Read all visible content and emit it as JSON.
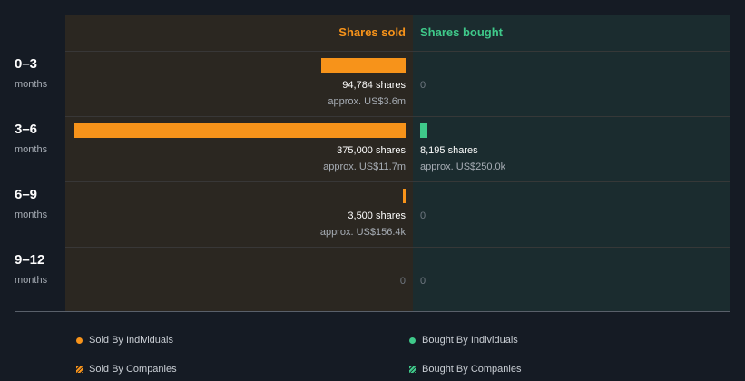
{
  "chart_data": {
    "type": "bar",
    "headers": {
      "sold": "Shares sold",
      "bought": "Shares bought"
    },
    "categories": [
      {
        "period": "0–3",
        "unit": "months"
      },
      {
        "period": "3–6",
        "unit": "months"
      },
      {
        "period": "6–9",
        "unit": "months"
      },
      {
        "period": "9–12",
        "unit": "months"
      }
    ],
    "series": [
      {
        "name": "Shares sold",
        "values": [
          94784,
          375000,
          3500,
          0
        ],
        "labels": [
          "94,784 shares",
          "375,000 shares",
          "3,500 shares",
          "0"
        ],
        "approx": [
          "approx. US$3.6m",
          "approx. US$11.7m",
          "approx. US$156.4k",
          ""
        ]
      },
      {
        "name": "Shares bought",
        "values": [
          0,
          8195,
          0,
          0
        ],
        "labels": [
          "0",
          "8,195 shares",
          "0",
          "0"
        ],
        "approx": [
          "",
          "approx. US$250.0k",
          "",
          ""
        ]
      }
    ],
    "legend": [
      {
        "label": "Sold By Individuals",
        "color": "#f7931a",
        "style": "dot"
      },
      {
        "label": "Bought By Individuals",
        "color": "#3fc98a",
        "style": "dot"
      },
      {
        "label": "Sold By Companies",
        "color": "#f7931a",
        "style": "hatch"
      },
      {
        "label": "Bought By Companies",
        "color": "#3fc98a",
        "style": "hatch"
      }
    ],
    "colors": {
      "sold": "#f7931a",
      "bought": "#3fc98a"
    }
  }
}
